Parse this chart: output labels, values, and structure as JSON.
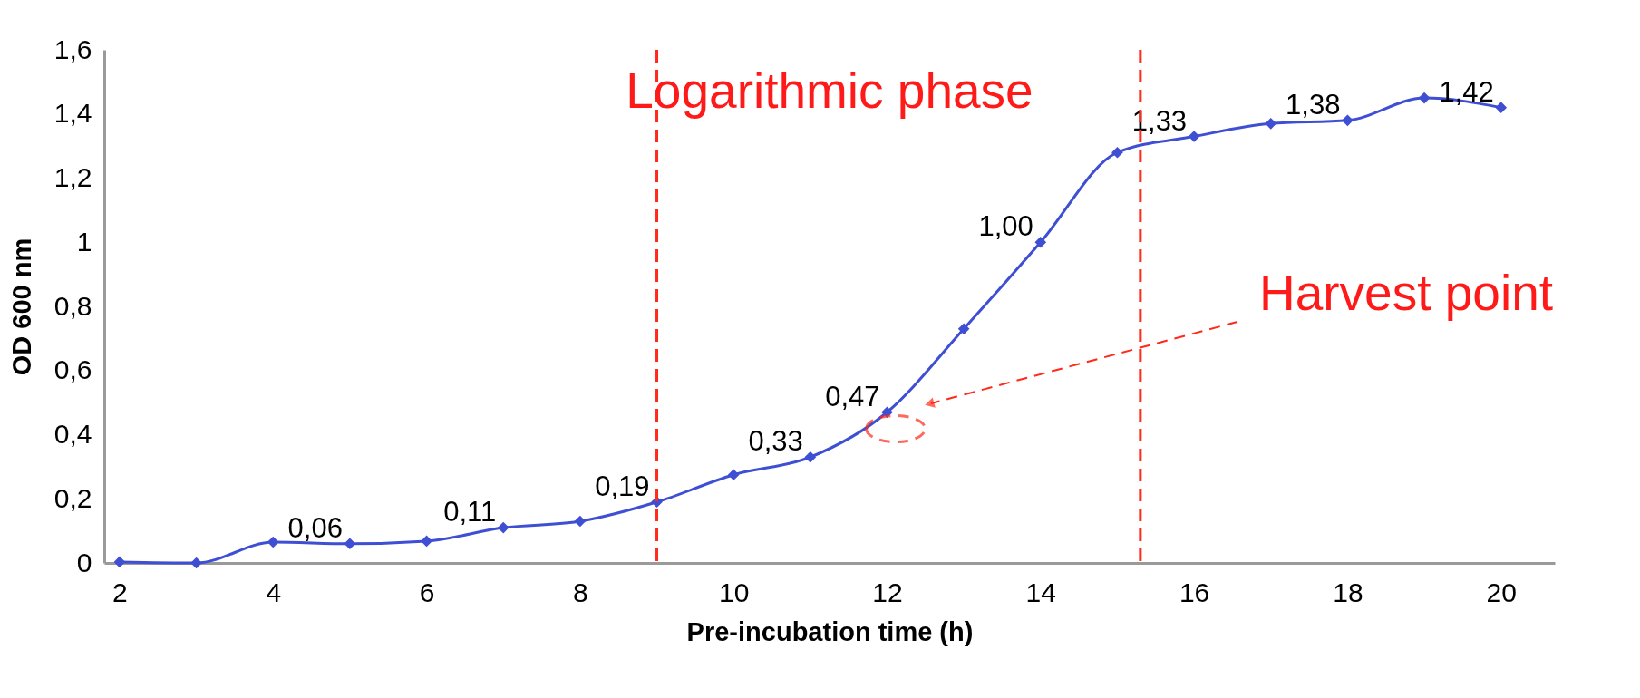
{
  "chart_data": {
    "type": "line",
    "xlabel": "Pre-incubation time (h)",
    "ylabel": "OD 600 nm",
    "color": "#3f4fd4",
    "marker": "diamond",
    "x": [
      2,
      3,
      4,
      5,
      6,
      7,
      8,
      9,
      10,
      11,
      12,
      13,
      14,
      15,
      16,
      17,
      18,
      19,
      20
    ],
    "values": [
      0.003,
      0.0,
      0.065,
      0.06,
      0.068,
      0.11,
      0.13,
      0.19,
      0.275,
      0.33,
      0.47,
      0.73,
      1.0,
      1.28,
      1.33,
      1.37,
      1.38,
      1.45,
      1.42
    ],
    "value_labels": [
      null,
      null,
      null,
      "0,06",
      null,
      "0,11",
      null,
      "0,19",
      null,
      "0,33",
      "0,47",
      null,
      "1,00",
      null,
      "1,33",
      null,
      "1,38",
      null,
      "1,42"
    ],
    "xlim": [
      1.8,
      20.7
    ],
    "xticks": [
      2,
      4,
      6,
      8,
      10,
      12,
      14,
      16,
      18,
      20
    ],
    "ylim": [
      0,
      1.6
    ],
    "yticks": [
      0,
      {
        "value": 0.2,
        "label": "0,2"
      },
      {
        "value": 0.4,
        "label": "0,4"
      },
      {
        "value": 0.6,
        "label": "0,6"
      },
      {
        "value": 0.8,
        "label": "0,8"
      },
      1,
      {
        "value": 1.2,
        "label": "1,2"
      },
      {
        "value": 1.4,
        "label": "1,4"
      },
      {
        "value": 1.6,
        "label": "1,6"
      }
    ],
    "ref_lines": [
      {
        "axis": "x",
        "value": 9,
        "color": "#ff2a1a",
        "line_style": "dashed"
      },
      {
        "axis": "x",
        "value": 15.3,
        "color": "#ff2a1a",
        "line_style": "dashed"
      }
    ],
    "annotations": [
      "Logarithmic phase",
      "Harvest point"
    ]
  }
}
